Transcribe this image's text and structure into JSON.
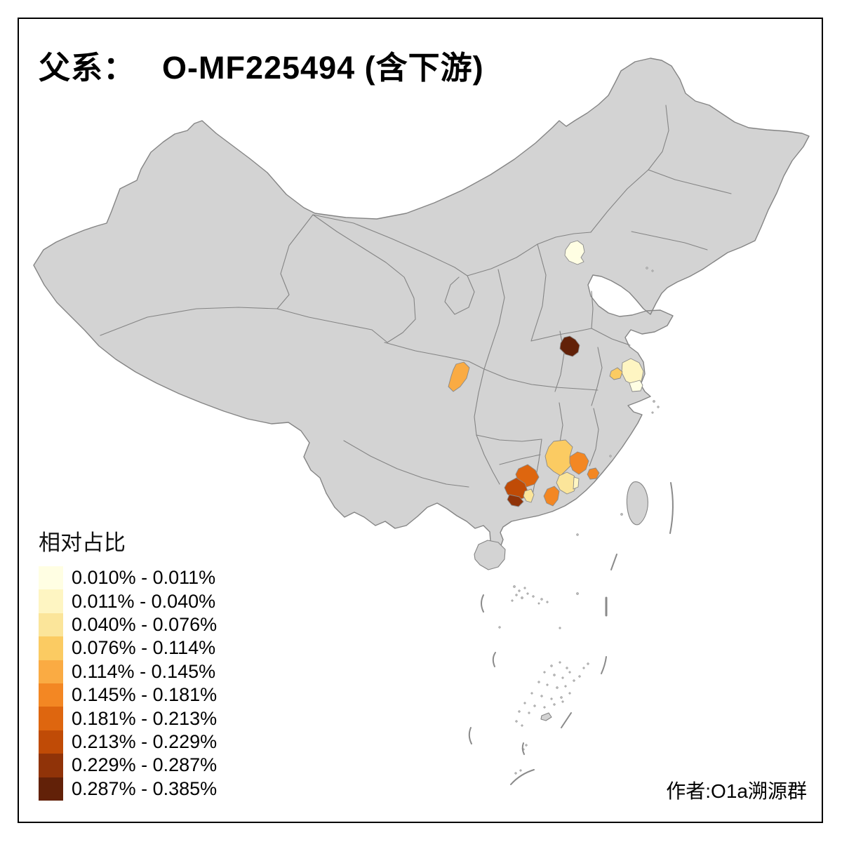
{
  "title": {
    "prefix": "父系：",
    "main": "O-MF225494 (含下游)"
  },
  "legend": {
    "title": "相对占比",
    "items": [
      {
        "label": "0.010% - 0.011%",
        "color": "#FFFEE3"
      },
      {
        "label": "0.011% - 0.040%",
        "color": "#FEF5C2"
      },
      {
        "label": "0.040% - 0.076%",
        "color": "#FBE59A"
      },
      {
        "label": "0.076% - 0.114%",
        "color": "#FBCB62"
      },
      {
        "label": "0.114% - 0.145%",
        "color": "#FAAB43"
      },
      {
        "label": "0.145% - 0.181%",
        "color": "#F38723"
      },
      {
        "label": "0.181% - 0.213%",
        "color": "#DE660F"
      },
      {
        "label": "0.213% - 0.229%",
        "color": "#C04B06"
      },
      {
        "label": "0.229% - 0.287%",
        "color": "#903308"
      },
      {
        "label": "0.287% - 0.385%",
        "color": "#622108"
      }
    ]
  },
  "attribution": "作者:O1a溯源群",
  "map_style": {
    "land_color": "#D3D3D3",
    "border_color": "#848484",
    "sea_color": "#FFFFFF",
    "frame_color": "#000000"
  },
  "chart_data": {
    "type": "choropleth-map",
    "title": "父系： O-MF225494 (含下游)",
    "legend_title": "相对占比",
    "legend_position": "bottom-left",
    "classes": [
      {
        "range": "0.010% - 0.011%",
        "color": "#FFFEE3"
      },
      {
        "range": "0.011% - 0.040%",
        "color": "#FEF5C2"
      },
      {
        "range": "0.040% - 0.076%",
        "color": "#FBE59A"
      },
      {
        "range": "0.076% - 0.114%",
        "color": "#FBCB62"
      },
      {
        "range": "0.114% - 0.145%",
        "color": "#FAAB43"
      },
      {
        "range": "0.145% - 0.181%",
        "color": "#F38723"
      },
      {
        "range": "0.181% - 0.213%",
        "color": "#DE660F"
      },
      {
        "range": "0.213% - 0.229%",
        "color": "#C04B06"
      },
      {
        "range": "0.229% - 0.287%",
        "color": "#903308"
      },
      {
        "range": "0.287% - 0.385%",
        "color": "#622108"
      }
    ],
    "regions": [
      {
        "id": "beijing-area",
        "class": 0,
        "range": "0.010% - 0.011%"
      },
      {
        "id": "nantong-coastal-area",
        "class": 0,
        "range": "0.010% - 0.011%"
      },
      {
        "id": "yancheng-area",
        "class": 1,
        "range": "0.011% - 0.040%"
      },
      {
        "id": "dongguan-sliver",
        "class": 1,
        "range": "0.011% - 0.040%"
      },
      {
        "id": "guangzhou-area",
        "class": 2,
        "range": "0.040% - 0.076%"
      },
      {
        "id": "se-guangxi-small-area",
        "class": 2,
        "range": "0.040% - 0.076%"
      },
      {
        "id": "huaian-small-area",
        "class": 3,
        "range": "0.076% - 0.114%"
      },
      {
        "id": "north-guangdong-area",
        "class": 3,
        "range": "0.076% - 0.114%"
      },
      {
        "id": "chongqing-area",
        "class": 4,
        "range": "0.114% - 0.145%"
      },
      {
        "id": "heyuan-area",
        "class": 5,
        "range": "0.145% - 0.181%"
      },
      {
        "id": "chaoshan-area",
        "class": 5,
        "range": "0.145% - 0.181%"
      },
      {
        "id": "foshan-jiangmen-area",
        "class": 5,
        "range": "0.145% - 0.181%"
      },
      {
        "id": "east-guangxi-area",
        "class": 6,
        "range": "0.181% - 0.213%"
      },
      {
        "id": "guigang-area",
        "class": 7,
        "range": "0.213% - 0.229%"
      },
      {
        "id": "yulin-area",
        "class": 8,
        "range": "0.229% - 0.287%"
      },
      {
        "id": "northwest-anhui-area",
        "class": 9,
        "range": "0.287% - 0.385%"
      }
    ]
  }
}
